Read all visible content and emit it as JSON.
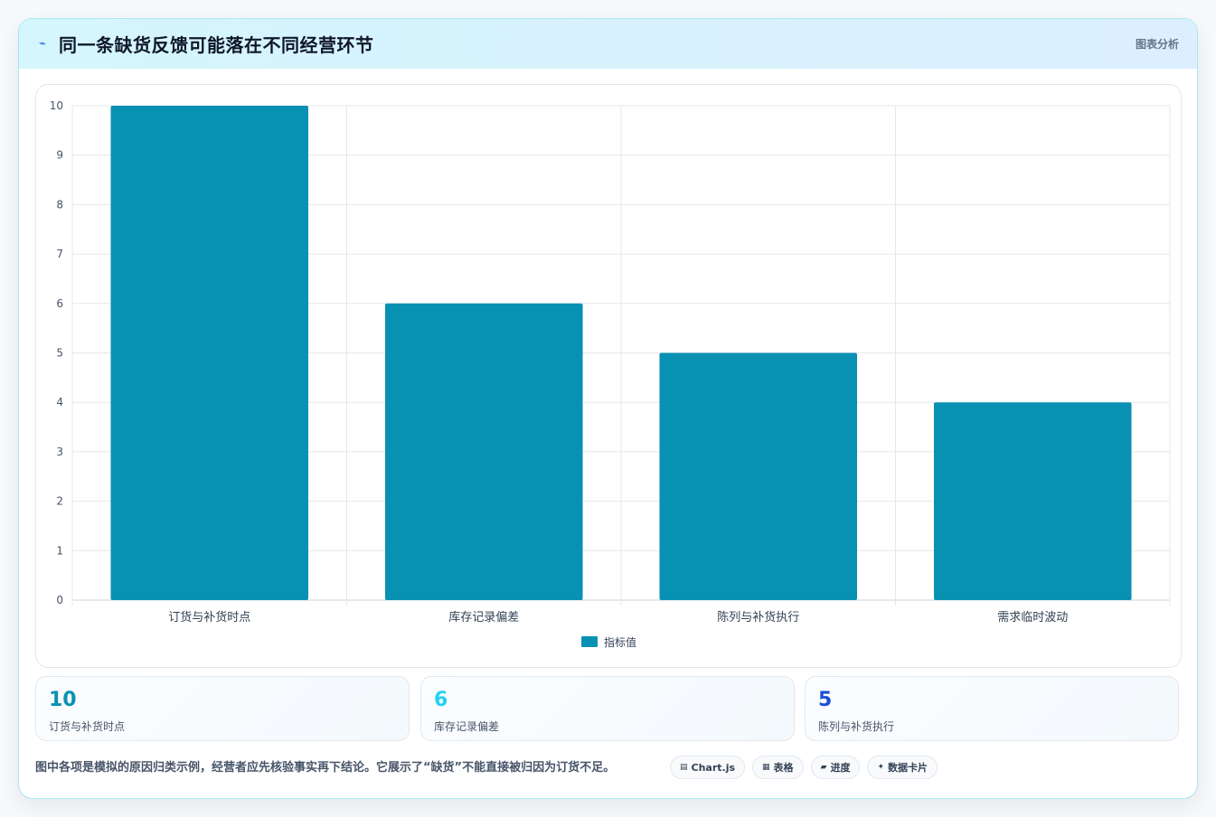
{
  "card": {
    "title": "同一条缺货反馈可能落在不同经营环节",
    "title_icon": "lightning-icon",
    "tag": "图表分析"
  },
  "chart_data": {
    "type": "bar",
    "categories": [
      "订货与补货时点",
      "库存记录偏差",
      "陈列与补货执行",
      "需求临时波动"
    ],
    "series": [
      {
        "name": "指标值",
        "values": [
          10,
          6,
          5,
          4
        ],
        "color": "#0891b2"
      }
    ],
    "ylim": [
      0,
      10
    ],
    "yticks": [
      0,
      1,
      2,
      3,
      4,
      5,
      6,
      7,
      8,
      9,
      10
    ],
    "grid": true,
    "legend": "bottom"
  },
  "stats": [
    {
      "value": "10",
      "label": "订货与补货时点",
      "color": "#0891b2"
    },
    {
      "value": "6",
      "label": "库存记录偏差",
      "color": "#22d3ee"
    },
    {
      "value": "5",
      "label": "陈列与补货执行",
      "color": "#1d4ed8"
    }
  ],
  "footer": {
    "note": "图中各项是模拟的原因归类示例，经营者应先核验事实再下结论。它展示了“缺货”不能直接被归因为订货不足。",
    "chips": [
      {
        "icon": "chart-icon",
        "glyph": "▤",
        "label": "Chart.js"
      },
      {
        "icon": "table-icon",
        "glyph": "▦",
        "label": "表格"
      },
      {
        "icon": "progress-icon",
        "glyph": "▰",
        "label": "进度"
      },
      {
        "icon": "card-icon",
        "glyph": "✦",
        "label": "数据卡片"
      }
    ]
  }
}
